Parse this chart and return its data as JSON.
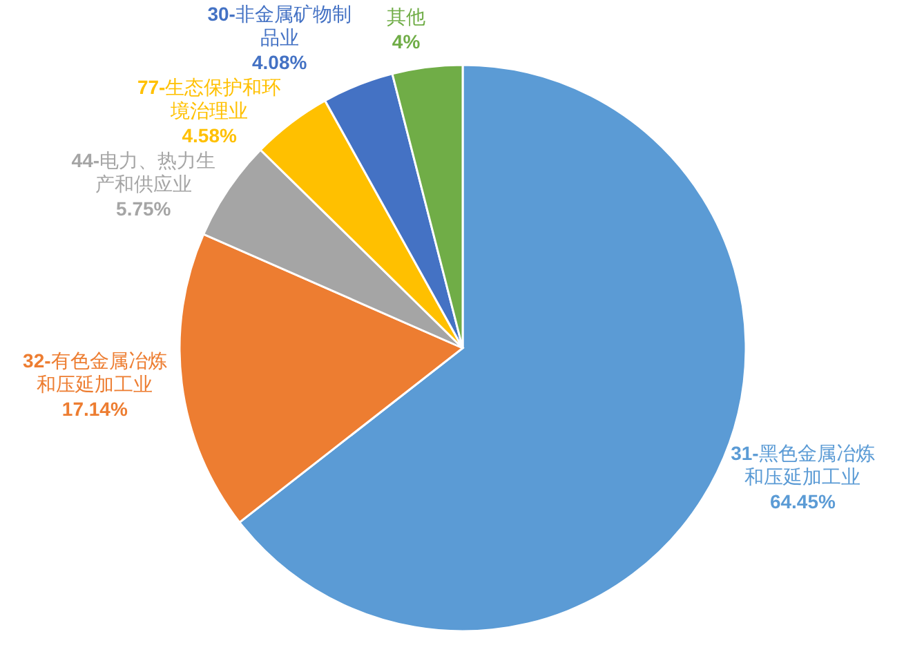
{
  "chart_data": {
    "type": "pie",
    "categories": [
      "**31-**黑色金属冶炼和压延加工业",
      "**32-**有色金属冶炼和压延加工业",
      "**44-**电力、热力生产和供应业",
      "**77-**生态保护和环境治理业",
      "**30-**非金属矿物制品业",
      "其他"
    ],
    "values": [
      64.45,
      17.14,
      5.75,
      4.58,
      4.08,
      4
    ],
    "value_labels": [
      "64.45%",
      "17.14%",
      "5.75%",
      "4.58%",
      "4.08%",
      "4%"
    ],
    "colors": [
      "#5b9bd5",
      "#ed7d31",
      "#a5a5a5",
      "#ffc000",
      "#4472c4",
      "#70ad47"
    ]
  }
}
